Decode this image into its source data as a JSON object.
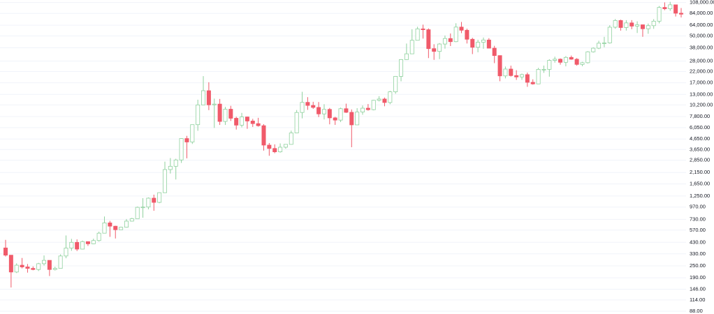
{
  "chart_data": {
    "type": "candlestick",
    "log_scale": true,
    "grid": true,
    "up_color": "#8fd19e",
    "down_color": "#f05a6a",
    "ylim": [
      82.5,
      114400
    ],
    "yticks": [
      {
        "value": 88,
        "label": "88.00"
      },
      {
        "value": 114,
        "label": "114.00"
      },
      {
        "value": 146,
        "label": "146.00"
      },
      {
        "value": 190,
        "label": "190.00"
      },
      {
        "value": 250,
        "label": "250.00"
      },
      {
        "value": 330,
        "label": "330.00"
      },
      {
        "value": 430,
        "label": "430.00"
      },
      {
        "value": 570,
        "label": "570.00"
      },
      {
        "value": 730,
        "label": "730.00"
      },
      {
        "value": 970,
        "label": "970.00"
      },
      {
        "value": 1250,
        "label": "1,250.00"
      },
      {
        "value": 1650,
        "label": "1,650.00"
      },
      {
        "value": 2150,
        "label": "2,150.00"
      },
      {
        "value": 2850,
        "label": "2,850.00"
      },
      {
        "value": 3650,
        "label": "3,650.00"
      },
      {
        "value": 4650,
        "label": "4,650.00"
      },
      {
        "value": 6050,
        "label": "6,050.00"
      },
      {
        "value": 7800,
        "label": "7,800.00"
      },
      {
        "value": 10200,
        "label": "10,200.00"
      },
      {
        "value": 13000,
        "label": "13,000.00"
      },
      {
        "value": 17000,
        "label": "17,000.00"
      },
      {
        "value": 22000,
        "label": "22,000.00"
      },
      {
        "value": 28000,
        "label": "28,000.00"
      },
      {
        "value": 38000,
        "label": "38,000.00"
      },
      {
        "value": 50000,
        "label": "50,000.00"
      },
      {
        "value": 64000,
        "label": "64,000.00"
      },
      {
        "value": 84000,
        "label": "84,000.00"
      },
      {
        "value": 108000,
        "label": "108,000.00"
      }
    ],
    "open": [
      378,
      320,
      217,
      254,
      244,
      236,
      230,
      263,
      284,
      230,
      236,
      314,
      377,
      430,
      368,
      437,
      416,
      448,
      531,
      673,
      624,
      575,
      609,
      701,
      742,
      964,
      970,
      1190,
      1080,
      1350,
      2300,
      2480,
      2870,
      4700,
      4340,
      6470,
      10200,
      14150,
      10220,
      10400,
      6970,
      9240,
      7500,
      6400,
      7730,
      7040,
      6630,
      6320,
      4040,
      3740,
      3460,
      3850,
      4110,
      5350,
      8570,
      10820,
      10080,
      9630,
      8290,
      9200,
      7570,
      7190,
      9350,
      8600,
      6440,
      8660,
      9460,
      9140,
      11350,
      11680,
      10780,
      13800,
      19700,
      29000,
      33100,
      45200,
      58800,
      57700,
      37300,
      35000,
      41500,
      47100,
      43800,
      61300,
      57000,
      46300,
      38500,
      43200,
      45500,
      37700,
      31800,
      19900,
      23300,
      20050,
      19430,
      20500,
      17170,
      16550,
      23140,
      23150,
      28480,
      29250,
      27220,
      30480,
      29230,
      25940,
      26970,
      34670,
      37710,
      42280,
      42580,
      61130,
      71330,
      60670,
      67490,
      62680,
      64630,
      58970,
      63330,
      70220,
      96450,
      93430,
      102400,
      84370
    ],
    "high": [
      455,
      321,
      265,
      300,
      261,
      247,
      268,
      318,
      282,
      245,
      326,
      504,
      466,
      460,
      448,
      440,
      468,
      550,
      780,
      705,
      630,
      616,
      736,
      757,
      980,
      1190,
      1210,
      1290,
      1360,
      2760,
      3000,
      2950,
      4740,
      5000,
      6470,
      11500,
      19800,
      17200,
      11800,
      11700,
      9750,
      9990,
      7770,
      8490,
      7780,
      7400,
      7580,
      6550,
      4240,
      4110,
      4200,
      4130,
      5640,
      9070,
      13800,
      12200,
      10960,
      10900,
      10370,
      9510,
      7750,
      9580,
      10500,
      9190,
      9470,
      10070,
      10400,
      11450,
      12470,
      12080,
      14100,
      19850,
      29300,
      41950,
      58350,
      61800,
      64850,
      59500,
      41300,
      42400,
      50500,
      52900,
      67000,
      69000,
      59100,
      47900,
      45800,
      48200,
      47500,
      39800,
      31900,
      24700,
      25200,
      22700,
      20980,
      21480,
      18390,
      23950,
      25250,
      29200,
      31000,
      29800,
      31400,
      31800,
      30000,
      27500,
      35200,
      38400,
      44700,
      48970,
      64000,
      73800,
      72700,
      71900,
      71950,
      70000,
      65100,
      66500,
      73600,
      99600,
      108300,
      109600,
      102500,
      95000
    ],
    "low": [
      310,
      152,
      212,
      236,
      214,
      226,
      222,
      252,
      198,
      225,
      236,
      298,
      354,
      352,
      365,
      396,
      413,
      438,
      530,
      488,
      470,
      592,
      603,
      694,
      742,
      758,
      920,
      890,
      1060,
      1340,
      2100,
      1830,
      2680,
      2980,
      4150,
      5620,
      10900,
      9050,
      6000,
      6430,
      6430,
      7050,
      5780,
      6080,
      5880,
      6140,
      6180,
      3560,
      3160,
      3350,
      3400,
      3720,
      4090,
      5330,
      7480,
      9100,
      9310,
      7710,
      7300,
      6520,
      6440,
      6870,
      8480,
      3850,
      6550,
      8130,
      8930,
      9010,
      11050,
      9890,
      10370,
      13200,
      17570,
      28800,
      33100,
      45000,
      47000,
      30000,
      28800,
      29300,
      37300,
      39600,
      43300,
      53300,
      42000,
      32900,
      34300,
      37200,
      37600,
      26700,
      17600,
      18800,
      19600,
      18150,
      18200,
      15480,
      16260,
      16500,
      21350,
      19550,
      27000,
      25800,
      24800,
      28850,
      25200,
      24900,
      26500,
      34100,
      36900,
      38500,
      41900,
      59000,
      56500,
      56550,
      58400,
      53500,
      49000,
      52550,
      58900,
      66800,
      90500,
      89200,
      78200,
      76600
    ],
    "close": [
      320,
      217,
      254,
      244,
      236,
      230,
      263,
      284,
      230,
      236,
      314,
      377,
      430,
      368,
      437,
      416,
      448,
      531,
      673,
      624,
      575,
      609,
      701,
      742,
      964,
      970,
      1190,
      1080,
      1350,
      2300,
      2480,
      2870,
      4700,
      4340,
      6470,
      10200,
      14150,
      10220,
      10400,
      6970,
      9240,
      7500,
      6400,
      7730,
      7040,
      6630,
      6320,
      4040,
      3740,
      3460,
      3850,
      4110,
      5350,
      8570,
      10820,
      10080,
      9630,
      8290,
      9200,
      7570,
      7190,
      9350,
      8600,
      6440,
      8660,
      9460,
      9140,
      11350,
      11680,
      10780,
      13800,
      19700,
      29000,
      33100,
      45200,
      58800,
      57700,
      37300,
      35000,
      41500,
      47100,
      43800,
      61300,
      57000,
      46300,
      38500,
      43200,
      45500,
      37700,
      31800,
      19900,
      23300,
      20050,
      19430,
      20500,
      17170,
      16550,
      23140,
      23150,
      28480,
      29250,
      27220,
      30480,
      29230,
      25940,
      26970,
      34670,
      37710,
      42280,
      42580,
      61130,
      71330,
      60670,
      67490,
      62680,
      64630,
      58970,
      63330,
      70220,
      96450,
      93430,
      102400,
      84370,
      82550
    ]
  }
}
